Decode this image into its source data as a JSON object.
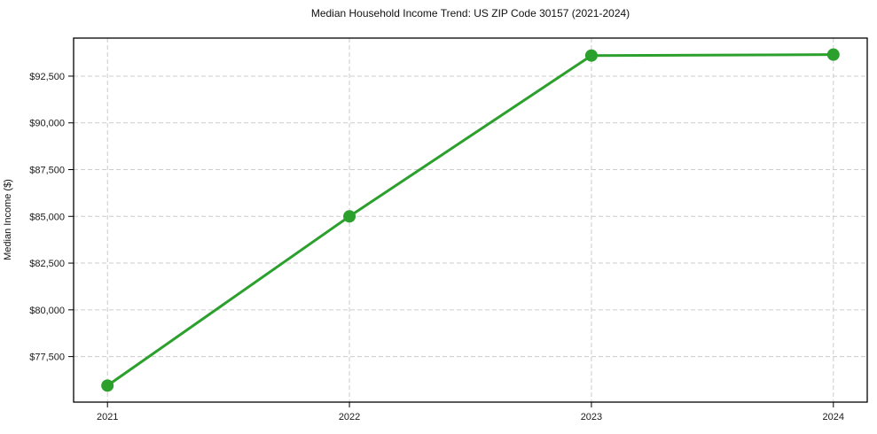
{
  "chart_data": {
    "type": "line",
    "title": "Median Household Income Trend: US ZIP Code 30157 (2021-2024)",
    "ylabel": "Median Income ($)",
    "xlabel": "",
    "x": [
      2021,
      2022,
      2023,
      2024
    ],
    "xtick_labels": [
      "2021",
      "2022",
      "2023",
      "2024"
    ],
    "values": [
      75950,
      85000,
      93600,
      93650
    ],
    "yticks": [
      77500,
      80000,
      82500,
      85000,
      87500,
      90000,
      92500
    ],
    "ytick_labels": [
      "$77,500",
      "$80,000",
      "$82,500",
      "$85,000",
      "$87,500",
      "$90,000",
      "$92,500"
    ],
    "ylim": [
      75065,
      94535
    ],
    "xlim": [
      2020.86,
      2024.14
    ],
    "line_color": "#2ca02c",
    "grid": true,
    "grid_style": "dashed",
    "legend_position": "none",
    "background_color": "#ffffff",
    "marker": "circle"
  }
}
